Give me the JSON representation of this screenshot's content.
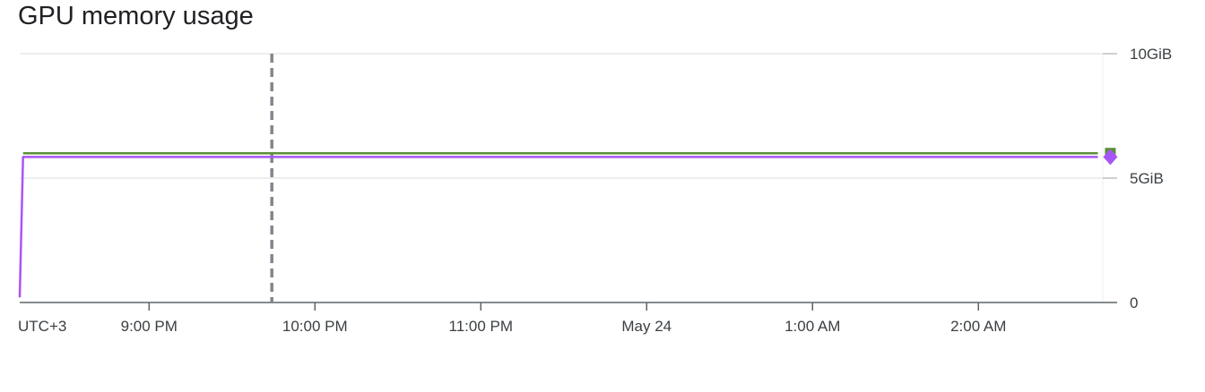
{
  "chart_data": {
    "type": "line",
    "title": "GPU memory usage",
    "xlabel": "",
    "ylabel": "",
    "timezone_label": "UTC+3",
    "x_ticks": [
      {
        "label": "9:00 PM",
        "hour": 21.0
      },
      {
        "label": "10:00 PM",
        "hour": 22.0
      },
      {
        "label": "11:00 PM",
        "hour": 23.0
      },
      {
        "label": "May 24",
        "hour": 24.0
      },
      {
        "label": "1:00 AM",
        "hour": 25.0
      },
      {
        "label": "2:00 AM",
        "hour": 26.0
      }
    ],
    "xlim": [
      20.22,
      26.75
    ],
    "ylim": [
      0,
      10
    ],
    "y_ticks": [
      {
        "label": "0",
        "value": 0
      },
      {
        "label": "5GiB",
        "value": 5
      },
      {
        "label": "10GiB",
        "value": 10
      }
    ],
    "marker_time": 21.74,
    "grid": true,
    "series": [
      {
        "color": "#5b8f3a",
        "x": [
          20.24,
          26.72
        ],
        "y": [
          6.0,
          6.0
        ],
        "end_marker": "square"
      },
      {
        "color": "#a855f7",
        "x": [
          20.22,
          20.24,
          26.72
        ],
        "y": [
          0.2,
          5.85,
          5.85
        ],
        "end_marker": "diamond"
      }
    ]
  }
}
